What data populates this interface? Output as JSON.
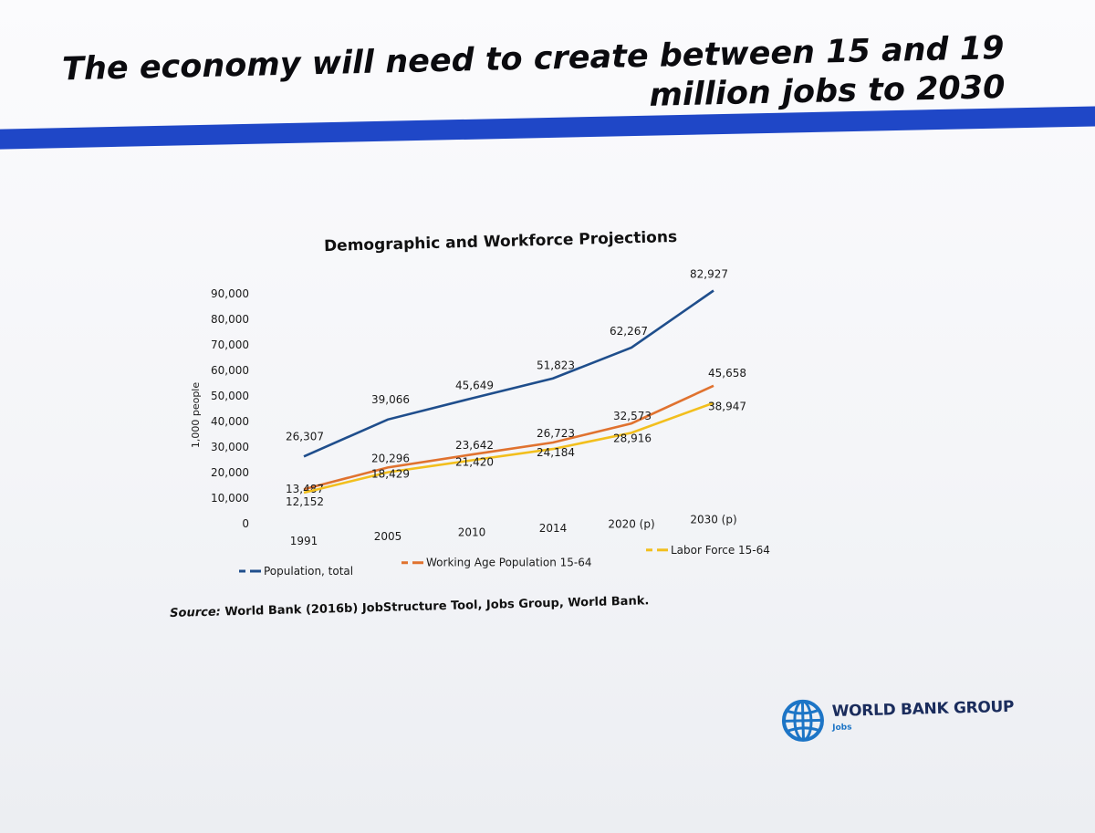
{
  "slide": {
    "title": "The economy will need to create between 15 and 19 million jobs to 2030",
    "source_label": "Source:",
    "source_text": " World Bank (2016b) JobStructure Tool, Jobs Group, World Bank."
  },
  "logo": {
    "name": "WORLD BANK GROUP",
    "subtitle": "Jobs",
    "icon": "globe-icon",
    "color": "#1d75c6"
  },
  "colors": {
    "accent_bar": "#1f47c7"
  },
  "chart_data": {
    "type": "line",
    "title": "Demographic and Workforce Projections",
    "xlabel": "",
    "ylabel": "1,000 people",
    "categories": [
      "1991",
      "2005",
      "2010",
      "2014",
      "2020 (p)",
      "2030 (p)"
    ],
    "yticks": [
      "0",
      "10,000",
      "20,000",
      "30,000",
      "40,000",
      "50,000",
      "60,000",
      "70,000",
      "80,000",
      "90,000"
    ],
    "ylim": [
      0,
      90000
    ],
    "grid": false,
    "legend_position": "bottom",
    "series": [
      {
        "name": "Population, total",
        "color": "#1f4e8c",
        "values": [
          26307,
          39066,
          45649,
          51823,
          62267,
          82927
        ],
        "labels": [
          "26,307",
          "39,066",
          "45,649",
          "51,823",
          "62,267",
          "82,927"
        ]
      },
      {
        "name": "Working Age Population 15-64",
        "color": "#e0722f",
        "values": [
          13487,
          20296,
          23642,
          26723,
          32573,
          45658
        ],
        "labels": [
          "13,487",
          "20,296",
          "23,642",
          "26,723",
          "32,573",
          "45,658"
        ]
      },
      {
        "name": "Labor Force 15-64",
        "color": "#f2bf1d",
        "values": [
          12152,
          18429,
          21420,
          24184,
          28916,
          38947
        ],
        "labels": [
          "12,152",
          "18,429",
          "21,420",
          "24,184",
          "28,916",
          "38,947"
        ]
      }
    ]
  }
}
